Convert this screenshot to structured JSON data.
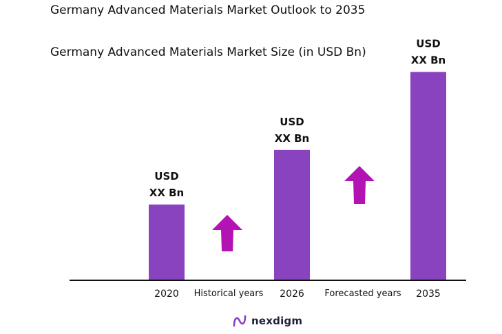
{
  "header": {
    "title": "Germany Advanced Materials Market Outlook to 2035",
    "subtitle": "Germany Advanced Materials Market Size (in USD Bn)"
  },
  "chart_data": {
    "type": "bar",
    "categories": [
      "2020",
      "2026",
      "2035"
    ],
    "values": [
      1,
      1.72,
      2.75
    ],
    "value_labels": [
      [
        "USD",
        "XX Bn"
      ],
      [
        "USD",
        "XX Bn"
      ],
      [
        "USD",
        "XX Bn"
      ]
    ],
    "period_labels": [
      "Historical years",
      "Forecasted years"
    ],
    "bar_color": "#8a43bf",
    "arrow_color": "#b413b4",
    "axis_color": "#111111",
    "grid": false,
    "legend": "none"
  },
  "footer": {
    "brand": "nexdigm",
    "brand_color": "#8a43bf"
  }
}
